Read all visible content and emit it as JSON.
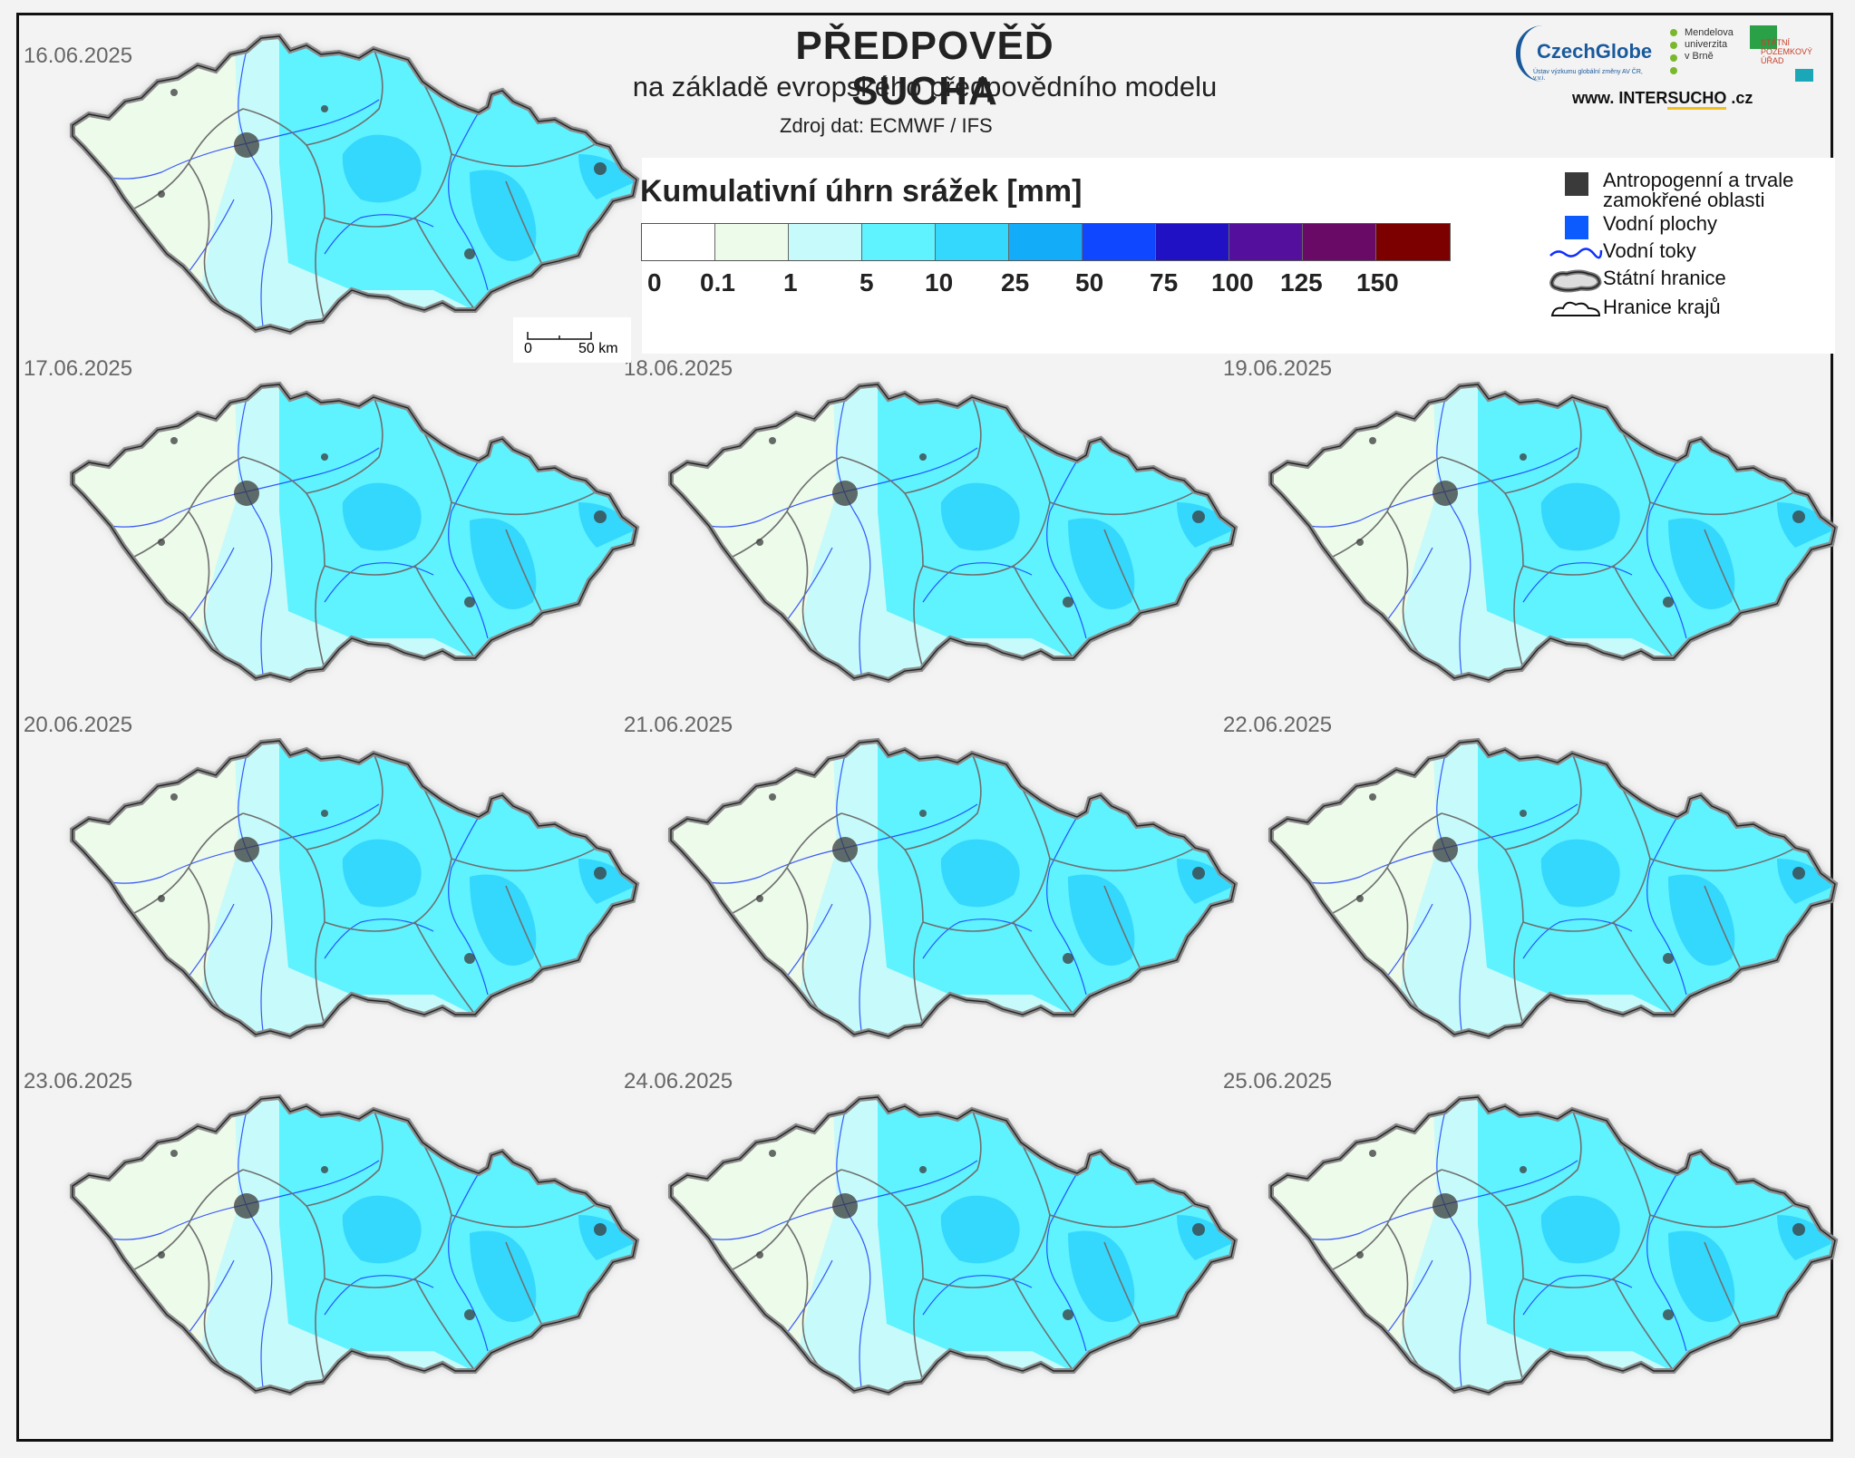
{
  "header": {
    "title": "PŘEDPOVĚĎ SUCHA",
    "subtitle": "na základě evropského předpovědního modelu",
    "source": "Zdroj dat: ECMWF / IFS"
  },
  "logos": {
    "czechglobe": "CzechGlobe",
    "czechglobe_sub": "Ústav výzkumu globální změny AV ČR, v.v.i.",
    "mendel_lines": [
      "Mendelova",
      "univerzita",
      "v Brně"
    ],
    "spu_lines": [
      "STÁTNÍ",
      "POZEMKOVÝ",
      "ÚŘAD"
    ],
    "intersucho_prefix": "www. INTER",
    "intersucho_bold": "SUCHO",
    "intersucho_suffix": " .cz"
  },
  "legend": {
    "title": "Kumulativní úhrn srážek [mm]",
    "bins": [
      {
        "color": "#ffffff"
      },
      {
        "color": "#ecfbea"
      },
      {
        "color": "#c7fafa"
      },
      {
        "color": "#5ff2ff"
      },
      {
        "color": "#34d8fd"
      },
      {
        "color": "#12acf9"
      },
      {
        "color": "#0f46ff"
      },
      {
        "color": "#2011c4"
      },
      {
        "color": "#54109c"
      },
      {
        "color": "#6a0a67"
      },
      {
        "color": "#7c0000"
      }
    ],
    "tick_labels": [
      "0",
      "0.1",
      "1",
      "5",
      "10",
      "25",
      "50",
      "75",
      "100",
      "125",
      "150"
    ]
  },
  "symbols": {
    "anthropogenic_line1": "Antropogenní a trvale",
    "anthropogenic_line2": "zamokřené oblasti",
    "water_bodies": "Vodní plochy",
    "water_courses": "Vodní toky",
    "state_border": "Státní hranice",
    "region_border": "Hranice krajů",
    "colors": {
      "anthropogenic": "#3a3a3a",
      "water_bodies": "#0b5bff",
      "water_courses": "#1030ff"
    }
  },
  "scale_bar": {
    "start": "0",
    "end": "50 km"
  },
  "maps": [
    {
      "date": "16.06.2025"
    },
    {
      "date": "17.06.2025"
    },
    {
      "date": "18.06.2025"
    },
    {
      "date": "19.06.2025"
    },
    {
      "date": "20.06.2025"
    },
    {
      "date": "21.06.2025"
    },
    {
      "date": "22.06.2025"
    },
    {
      "date": "23.06.2025"
    },
    {
      "date": "24.06.2025"
    },
    {
      "date": "25.06.2025"
    }
  ]
}
